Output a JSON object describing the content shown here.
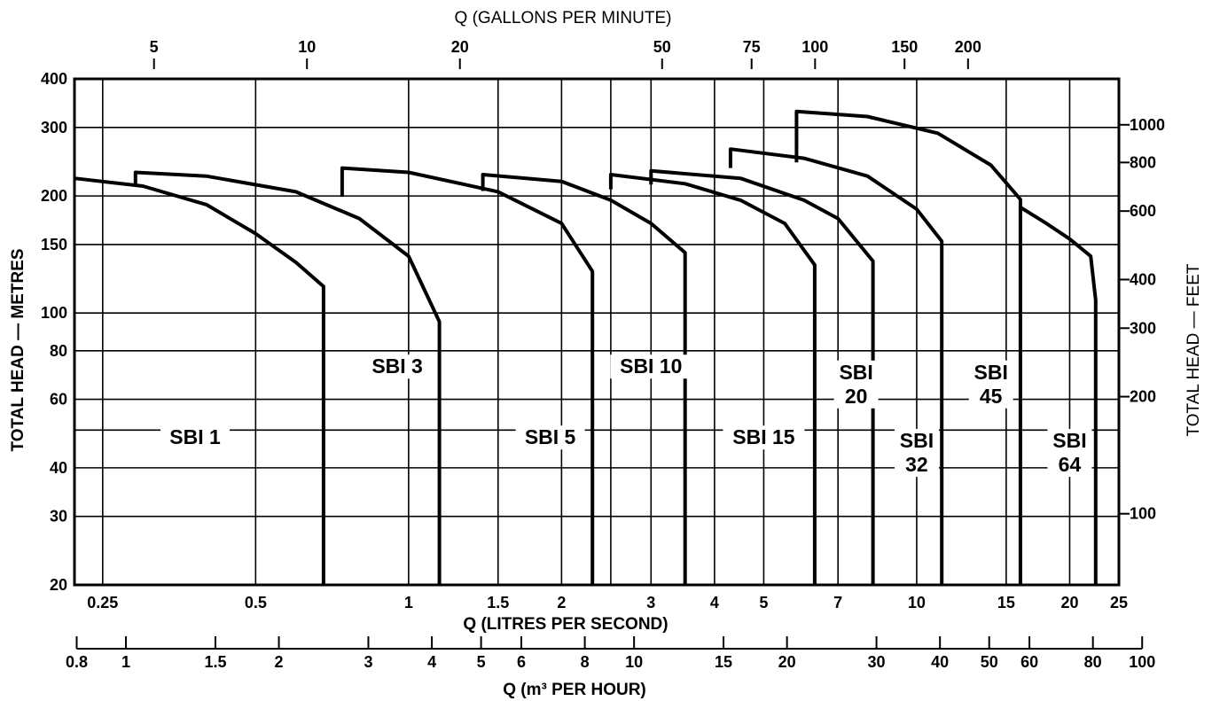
{
  "chart_data": {
    "type": "line",
    "title": "",
    "top_axis": {
      "label": "Q (GALLONS PER MINUTE)",
      "ticks": [
        5,
        10,
        20,
        50,
        75,
        100,
        150,
        200
      ]
    },
    "bottom_axis_primary": {
      "label": "Q (LITRES PER SECOND)",
      "scale": "log",
      "ticks": [
        0.25,
        0.5,
        1,
        1.5,
        2,
        3,
        4,
        5,
        7,
        10,
        15,
        20,
        25
      ],
      "xlim": [
        0.22,
        25
      ]
    },
    "bottom_axis_secondary": {
      "label": "Q (m³ PER HOUR)",
      "ticks": [
        0.8,
        1,
        1.5,
        2,
        3,
        4,
        5,
        6,
        8,
        10,
        15,
        20,
        30,
        40,
        50,
        60,
        80,
        100
      ]
    },
    "left_axis": {
      "label": "TOTAL HEAD — METRES",
      "scale": "log",
      "ticks": [
        20,
        30,
        40,
        60,
        80,
        100,
        150,
        200,
        300,
        400
      ],
      "ylim": [
        20,
        400
      ]
    },
    "right_axis": {
      "label": "TOTAL HEAD — FEET",
      "ticks": [
        100,
        200,
        300,
        400,
        600,
        800,
        1000
      ]
    },
    "grid": true,
    "series": [
      {
        "name": "SBI 1",
        "label_lines": [
          "SBI 1"
        ],
        "x": [
          0.22,
          0.3,
          0.4,
          0.5,
          0.6,
          0.68,
          0.68
        ],
        "y": [
          222,
          212,
          190,
          160,
          135,
          117,
          20
        ],
        "label_pos": [
          0.38,
          46
        ]
      },
      {
        "name": "SBI 3",
        "label_lines": [
          "SBI 3"
        ],
        "x": [
          0.29,
          0.29,
          0.4,
          0.6,
          0.8,
          1.0,
          1.15,
          1.15
        ],
        "y": [
          212,
          230,
          225,
          205,
          175,
          140,
          95,
          20
        ],
        "label_pos": [
          0.95,
          70
        ]
      },
      {
        "name": "SBI 5",
        "label_lines": [
          "SBI 5"
        ],
        "x": [
          0.74,
          0.74,
          1.0,
          1.5,
          2.0,
          2.3,
          2.3
        ],
        "y": [
          199,
          236,
          230,
          205,
          170,
          128,
          20
        ],
        "label_pos": [
          1.9,
          46
        ]
      },
      {
        "name": "SBI 10",
        "label_lines": [
          "SBI 10"
        ],
        "x": [
          1.4,
          1.4,
          2.0,
          2.5,
          3.0,
          3.5,
          3.5
        ],
        "y": [
          206,
          227,
          218,
          195,
          170,
          143,
          20
        ],
        "label_pos": [
          3.0,
          70
        ]
      },
      {
        "name": "SBI 15",
        "label_lines": [
          "SBI 15"
        ],
        "x": [
          2.5,
          2.5,
          3.5,
          4.5,
          5.5,
          6.3,
          6.3
        ],
        "y": [
          208,
          227,
          215,
          195,
          170,
          133,
          20
        ],
        "label_pos": [
          5.0,
          46
        ]
      },
      {
        "name": "SBI 20",
        "label_lines": [
          "SBI",
          "20"
        ],
        "x": [
          3.0,
          3.0,
          4.5,
          6.0,
          7.0,
          8.2,
          8.2
        ],
        "y": [
          214,
          232,
          222,
          195,
          175,
          136,
          20
        ],
        "label_pos": [
          7.6,
          63
        ]
      },
      {
        "name": "SBI 32",
        "label_lines": [
          "SBI",
          "32"
        ],
        "x": [
          4.3,
          4.3,
          6.0,
          8.0,
          10.0,
          11.2,
          11.2
        ],
        "y": [
          236,
          264,
          250,
          225,
          185,
          153,
          20
        ],
        "label_pos": [
          10.0,
          42
        ]
      },
      {
        "name": "SBI 45",
        "label_lines": [
          "SBI",
          "45"
        ],
        "x": [
          5.8,
          5.8,
          8.0,
          11.0,
          14.0,
          16.0,
          16.0
        ],
        "y": [
          244,
          330,
          320,
          290,
          240,
          196,
          20
        ],
        "label_pos": [
          14.0,
          63
        ]
      },
      {
        "name": "SBI 64",
        "label_lines": [
          "SBI",
          "64"
        ],
        "x": [
          16.0,
          18.0,
          20.0,
          22.0,
          22.5,
          22.5
        ],
        "y": [
          187,
          170,
          155,
          140,
          108,
          20
        ],
        "label_pos": [
          20.0,
          42
        ]
      }
    ]
  }
}
